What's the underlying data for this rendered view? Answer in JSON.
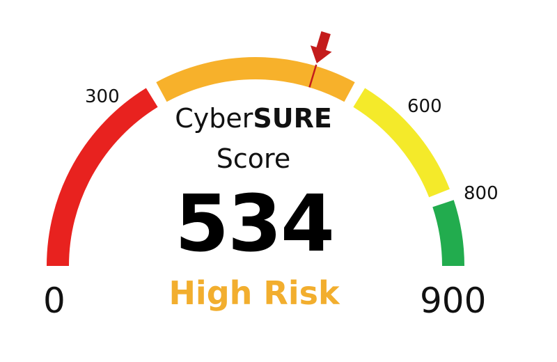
{
  "gauge": {
    "title_regular": "Cyber",
    "title_bold": "SURE",
    "subtitle": "Score",
    "score": 534,
    "score_text": "534",
    "risk_label": "High Risk",
    "risk_color": "#F2AE2E",
    "min_label": "0",
    "max_label": "900",
    "min": 0,
    "max": 900,
    "ticks": [
      {
        "value": 300,
        "label": "300"
      },
      {
        "value": 600,
        "label": "600"
      },
      {
        "value": 800,
        "label": "800"
      }
    ],
    "segments": [
      {
        "name": "segment-low",
        "from": 0,
        "to": 300,
        "color": "#E8221F"
      },
      {
        "name": "segment-high-risk",
        "from": 300,
        "to": 600,
        "color": "#F7B12B"
      },
      {
        "name": "segment-moderate",
        "from": 600,
        "to": 800,
        "color": "#F4EA2A"
      },
      {
        "name": "segment-good",
        "from": 800,
        "to": 900,
        "color": "#22AC4E"
      }
    ],
    "pointer_color": "#C41C1C",
    "pointer_icon": "down-arrow-icon"
  }
}
